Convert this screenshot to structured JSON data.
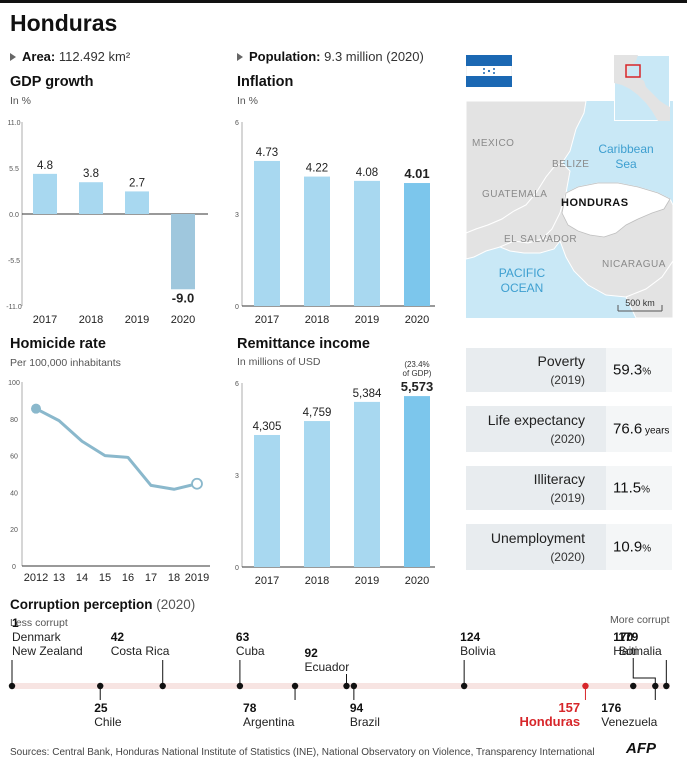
{
  "header": {
    "title": "Honduras",
    "area_label": "Area:",
    "area_value": "112.492 km²",
    "population_label": "Population:",
    "population_value": "9.3 million (2020)"
  },
  "sections": {
    "gdp_title": "GDP growth",
    "gdp_unit": "In %",
    "inflation_title": "Inflation",
    "inflation_unit": "In %",
    "homicide_title": "Homicide rate",
    "homicide_unit": "Per 100,000 inhabitants",
    "remittance_title": "Remittance income",
    "remittance_unit": "In millions of USD",
    "remittance_note_1": "(23.4%",
    "remittance_note_2": "of GDP)"
  },
  "chart_data": [
    {
      "id": "gdp",
      "type": "bar",
      "title": "GDP growth",
      "ylabel": "In %",
      "categories": [
        "2017",
        "2018",
        "2019",
        "2020"
      ],
      "values": [
        4.8,
        3.8,
        2.7,
        -9.0
      ],
      "labels": [
        "4.8",
        "3.8",
        "2.7",
        "-9.0"
      ],
      "ylim": [
        -11.0,
        11.0
      ],
      "yticks": [
        "11.0",
        "5.5",
        "0.0",
        "-5.5",
        "-11.0"
      ],
      "ytick_values": [
        11.0,
        5.5,
        0.0,
        -5.5,
        -11.0
      ]
    },
    {
      "id": "inflation",
      "type": "bar",
      "title": "Inflation",
      "ylabel": "In %",
      "categories": [
        "2017",
        "2018",
        "2019",
        "2020"
      ],
      "values": [
        4.73,
        4.22,
        4.08,
        4.01
      ],
      "labels": [
        "4.73",
        "4.22",
        "4.08",
        "4.01"
      ],
      "ylim": [
        0,
        6
      ],
      "yticks": [
        "6",
        "3",
        "0"
      ],
      "ytick_values": [
        6,
        3,
        0
      ]
    },
    {
      "id": "homicide",
      "type": "line",
      "title": "Homicide rate",
      "ylabel": "Per 100,000 inhabitants",
      "x": [
        "2012",
        "13",
        "14",
        "15",
        "16",
        "17",
        "18",
        "2019"
      ],
      "values": [
        85.5,
        79,
        67.8,
        60,
        59,
        43.8,
        41.7,
        44.7
      ],
      "ylim": [
        0,
        100
      ],
      "yticks": [
        "100",
        "80",
        "60",
        "40",
        "20",
        "0"
      ],
      "ytick_values": [
        100,
        80,
        60,
        40,
        20,
        0
      ]
    },
    {
      "id": "remittance",
      "type": "bar",
      "title": "Remittance income",
      "ylabel": "In millions of USD",
      "categories": [
        "2017",
        "2018",
        "2019",
        "2020"
      ],
      "values": [
        4305,
        4759,
        5384,
        5573
      ],
      "labels": [
        "4,305",
        "4,759",
        "5,384",
        "5,573"
      ],
      "ylim": [
        0,
        6000
      ],
      "yticks": [
        "6",
        "3",
        "0"
      ],
      "ytick_values": [
        6000,
        3000,
        0
      ]
    },
    {
      "id": "corruption",
      "type": "scatter",
      "title": "Corruption perception",
      "subtitle": "(2020)",
      "xlim": [
        1,
        180
      ],
      "points": [
        {
          "rank": "1",
          "name": "Denmark",
          "name2": "New Zealand",
          "value": 1
        },
        {
          "rank": "25",
          "name": "Chile",
          "value": 25
        },
        {
          "rank": "42",
          "name": "Costa Rica",
          "value": 42
        },
        {
          "rank": "63",
          "name": "Cuba",
          "value": 63
        },
        {
          "rank": "78",
          "name": "Argentina",
          "value": 78
        },
        {
          "rank": "92",
          "name": "Ecuador",
          "value": 92
        },
        {
          "rank": "94",
          "name": "Brazil",
          "value": 94
        },
        {
          "rank": "124",
          "name": "Bolivia",
          "value": 124
        },
        {
          "rank": "157",
          "name": "Honduras",
          "value": 157
        },
        {
          "rank": "170",
          "name": "Haiti",
          "value": 170
        },
        {
          "rank": "176",
          "name": "Venezuela",
          "value": 176
        },
        {
          "rank": "179",
          "name": "Somalia",
          "value": 179
        }
      ]
    }
  ],
  "corruption": {
    "title": "Corruption perception",
    "year": "(2020)",
    "less": "Less corrupt",
    "more": "More corrupt"
  },
  "map": {
    "mexico": "MEXICO",
    "belize": "BELIZE",
    "caribbean_1": "Caribbean",
    "caribbean_2": "Sea",
    "guatemala": "GUATEMALA",
    "honduras": "HONDURAS",
    "el_salvador": "EL SALVADOR",
    "pacific_1": "PACIFIC",
    "pacific_2": "OCEAN",
    "nicaragua": "NICARAGUA",
    "scale": "500 km"
  },
  "stats": [
    {
      "label": "Poverty",
      "year": "(2019)",
      "value": "59.3",
      "unit": "%"
    },
    {
      "label": "Life expectancy",
      "year": "(2020)",
      "value": "76.6",
      "unit": " years"
    },
    {
      "label": "Illiteracy",
      "year": "(2019)",
      "value": "11.5",
      "unit": "%"
    },
    {
      "label": "Unemployment",
      "year": "(2020)",
      "value": "10.9",
      "unit": "%"
    }
  ],
  "footer": {
    "sources": "Sources: Central Bank, Honduras National Institute of Statistics (INE), National Observatory on Violence, Transparency International",
    "logo": "AFP"
  },
  "colors": {
    "bar": "#a8d8f0",
    "bar_last": "#7cc6ec",
    "bar_negative": "#9fc7dd",
    "line": "#8ab8cc",
    "honduras_red": "#d7262a",
    "sea": "#c9e8f6"
  }
}
